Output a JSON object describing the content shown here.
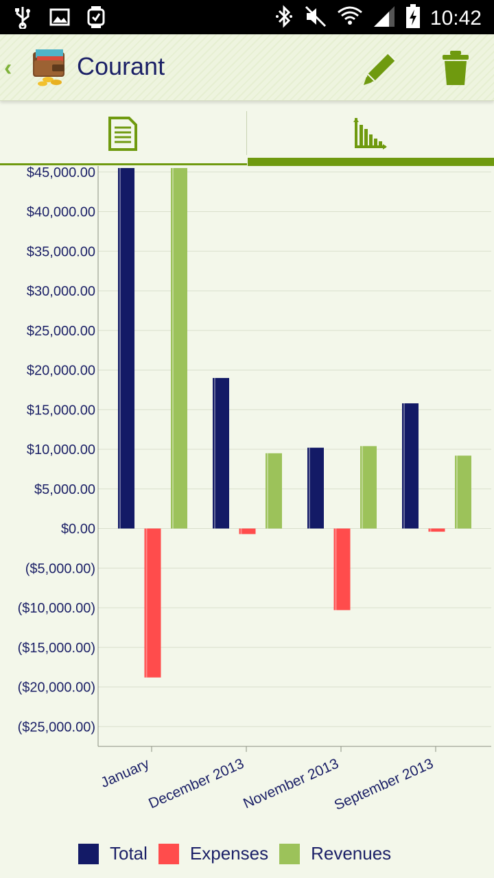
{
  "status_bar": {
    "time": "10:42",
    "left_icons": [
      "usb-icon",
      "image-icon",
      "watch-icon"
    ],
    "right_icons": [
      "bluetooth-icon",
      "mute-icon",
      "wifi-icon",
      "signal-icon",
      "battery-charging-icon"
    ]
  },
  "action_bar": {
    "title": "Courant",
    "back_icon": "chevron-left-icon",
    "app_icon": "wallet-icon",
    "edit_icon": "pencil-icon",
    "delete_icon": "trash-icon"
  },
  "tabs": [
    {
      "icon": "document-list-icon",
      "selected": false
    },
    {
      "icon": "bar-chart-icon",
      "selected": true
    }
  ],
  "colors": {
    "accent": "#6f9a0f",
    "text": "#1a1f66",
    "total": "#131a66",
    "expenses": "#ff4c4c",
    "revenues": "#9cc25a"
  },
  "chart_data": {
    "type": "bar",
    "categories": [
      "January",
      "December 2013",
      "November 2013",
      "September 2013"
    ],
    "series": [
      {
        "name": "Total",
        "values": [
          45500,
          19000,
          10200,
          15800
        ]
      },
      {
        "name": "Expenses",
        "values": [
          -18800,
          -700,
          -10300,
          -400
        ]
      },
      {
        "name": "Revenues",
        "values": [
          45500,
          9500,
          10400,
          9200
        ]
      }
    ],
    "ylim": [
      -27500,
      45500
    ],
    "yticks": [
      45000,
      40000,
      35000,
      30000,
      25000,
      20000,
      15000,
      10000,
      5000,
      0,
      -5000,
      -10000,
      -15000,
      -20000,
      -25000
    ],
    "ytick_labels": [
      "$45,000.00",
      "$40,000.00",
      "$35,000.00",
      "$30,000.00",
      "$25,000.00",
      "$20,000.00",
      "$15,000.00",
      "$10,000.00",
      "$5,000.00",
      "$0.00",
      "($5,000.00)",
      "($10,000.00)",
      "($15,000.00)",
      "($20,000.00)",
      "($25,000.00)"
    ],
    "grid": true,
    "legend_position": "bottom",
    "title": "",
    "xlabel": "",
    "ylabel": ""
  },
  "legend": [
    {
      "label": "Total"
    },
    {
      "label": "Expenses"
    },
    {
      "label": "Revenues"
    }
  ]
}
